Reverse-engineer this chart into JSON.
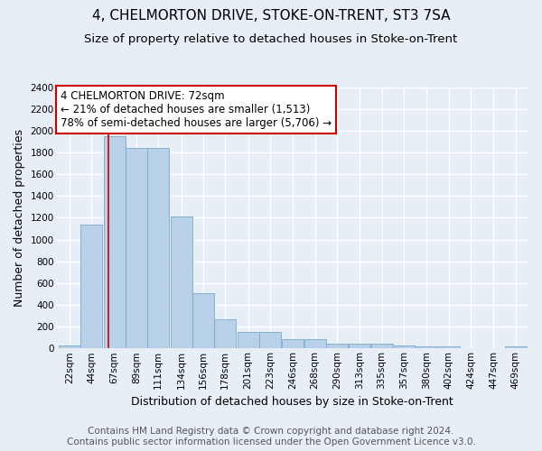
{
  "title": "4, CHELMORTON DRIVE, STOKE-ON-TRENT, ST3 7SA",
  "subtitle": "Size of property relative to detached houses in Stoke-on-Trent",
  "xlabel": "Distribution of detached houses by size in Stoke-on-Trent",
  "ylabel": "Number of detached properties",
  "bin_edges": [
    22,
    44,
    67,
    89,
    111,
    134,
    156,
    178,
    201,
    223,
    246,
    268,
    290,
    313,
    335,
    357,
    380,
    402,
    424,
    447,
    469
  ],
  "bar_heights": [
    30,
    1140,
    1950,
    1840,
    1840,
    1210,
    510,
    265,
    155,
    155,
    85,
    85,
    45,
    45,
    40,
    25,
    20,
    20,
    5,
    5,
    20
  ],
  "bar_color": "#b8d0e8",
  "bar_edge_color": "#7aaacb",
  "background_color": "#e8eef5",
  "grid_color": "#ffffff",
  "red_line_x": 72,
  "annotation_text": "4 CHELMORTON DRIVE: 72sqm\n← 21% of detached houses are smaller (1,513)\n78% of semi-detached houses are larger (5,706) →",
  "annotation_box_color": "#ffffff",
  "annotation_border_color": "#cc0000",
  "ylim": [
    0,
    2400
  ],
  "yticks": [
    0,
    200,
    400,
    600,
    800,
    1000,
    1200,
    1400,
    1600,
    1800,
    2000,
    2200,
    2400
  ],
  "footer_line1": "Contains HM Land Registry data © Crown copyright and database right 2024.",
  "footer_line2": "Contains public sector information licensed under the Open Government Licence v3.0.",
  "title_fontsize": 11,
  "subtitle_fontsize": 9.5,
  "axis_label_fontsize": 9,
  "tick_fontsize": 7.5,
  "annotation_fontsize": 8.5,
  "footer_fontsize": 7.5
}
